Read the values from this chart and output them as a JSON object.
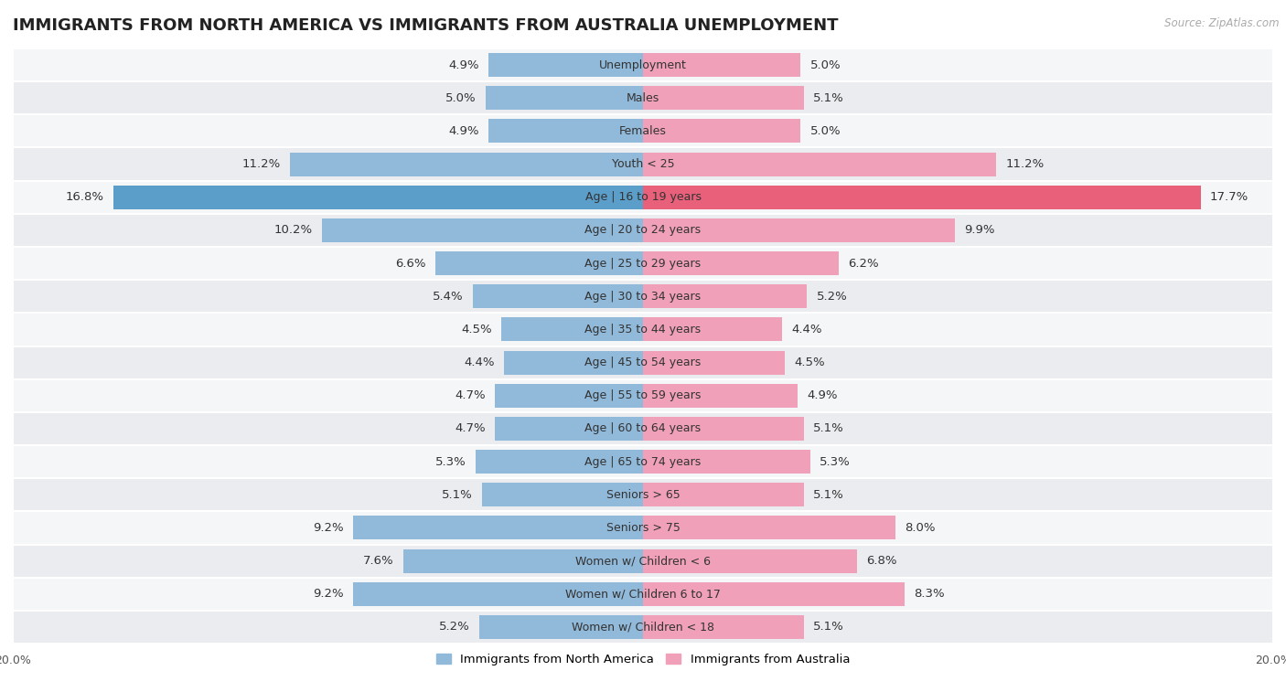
{
  "title": "IMMIGRANTS FROM NORTH AMERICA VS IMMIGRANTS FROM AUSTRALIA UNEMPLOYMENT",
  "source": "Source: ZipAtlas.com",
  "categories": [
    "Unemployment",
    "Males",
    "Females",
    "Youth < 25",
    "Age | 16 to 19 years",
    "Age | 20 to 24 years",
    "Age | 25 to 29 years",
    "Age | 30 to 34 years",
    "Age | 35 to 44 years",
    "Age | 45 to 54 years",
    "Age | 55 to 59 years",
    "Age | 60 to 64 years",
    "Age | 65 to 74 years",
    "Seniors > 65",
    "Seniors > 75",
    "Women w/ Children < 6",
    "Women w/ Children 6 to 17",
    "Women w/ Children < 18"
  ],
  "north_america": [
    4.9,
    5.0,
    4.9,
    11.2,
    16.8,
    10.2,
    6.6,
    5.4,
    4.5,
    4.4,
    4.7,
    4.7,
    5.3,
    5.1,
    9.2,
    7.6,
    9.2,
    5.2
  ],
  "australia": [
    5.0,
    5.1,
    5.0,
    11.2,
    17.7,
    9.9,
    6.2,
    5.2,
    4.4,
    4.5,
    4.9,
    5.1,
    5.3,
    5.1,
    8.0,
    6.8,
    8.3,
    5.1
  ],
  "color_north_america": "#91b9d9",
  "color_australia": "#f0a0b8",
  "color_north_america_highlight": "#5b9ec9",
  "color_australia_highlight": "#e8607a",
  "background_row_alt": "#eaecf0",
  "background_row_white": "#f5f6f8",
  "axis_max": 20.0,
  "bar_height": 0.72,
  "title_fontsize": 13,
  "label_fontsize": 9.5,
  "tick_fontsize": 9,
  "category_fontsize": 9
}
